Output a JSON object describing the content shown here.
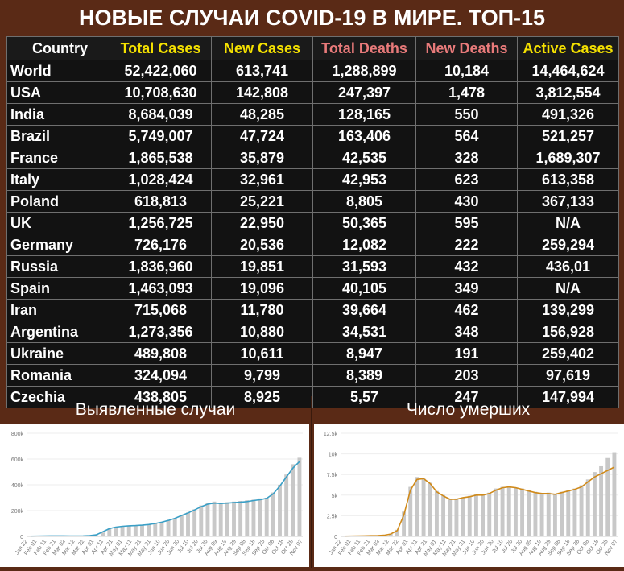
{
  "title": "НОВЫЕ СЛУЧАИ COVID-19 В МИРЕ. ТОП-15",
  "table": {
    "headers": [
      "Country",
      "Total Cases",
      "New Cases",
      "Total Deaths",
      "New Deaths",
      "Active Cases"
    ],
    "header_colors": [
      "#ffffff",
      "#f5e100",
      "#f5e100",
      "#e87a7a",
      "#e87a7a",
      "#f5e100"
    ],
    "rows": [
      [
        "World",
        "52,422,060",
        "613,741",
        "1,288,899",
        "10,184",
        "14,464,624"
      ],
      [
        "USA",
        "10,708,630",
        "142,808",
        "247,397",
        "1,478",
        "3,812,554"
      ],
      [
        "India",
        "8,684,039",
        "48,285",
        "128,165",
        "550",
        "491,326"
      ],
      [
        "Brazil",
        "5,749,007",
        "47,724",
        "163,406",
        "564",
        "521,257"
      ],
      [
        "France",
        "1,865,538",
        "35,879",
        "42,535",
        "328",
        "1,689,307"
      ],
      [
        "Italy",
        "1,028,424",
        "32,961",
        "42,953",
        "623",
        "613,358"
      ],
      [
        "Poland",
        "618,813",
        "25,221",
        "8,805",
        "430",
        "367,133"
      ],
      [
        "UK",
        "1,256,725",
        "22,950",
        "50,365",
        "595",
        "N/A"
      ],
      [
        "Germany",
        "726,176",
        "20,536",
        "12,082",
        "222",
        "259,294"
      ],
      [
        "Russia",
        "1,836,960",
        "19,851",
        "31,593",
        "432",
        "436,01"
      ],
      [
        "Spain",
        "1,463,093",
        "19,096",
        "40,105",
        "349",
        "N/A"
      ],
      [
        "Iran",
        "715,068",
        "11,780",
        "39,664",
        "462",
        "139,299"
      ],
      [
        "Argentina",
        "1,273,356",
        "10,880",
        "34,531",
        "348",
        "156,928"
      ],
      [
        "Ukraine",
        "489,808",
        "10,611",
        "8,947",
        "191",
        "259,402"
      ],
      [
        "Romania",
        "324,094",
        "9,799",
        "8,389",
        "203",
        "97,619"
      ],
      [
        "Czechia",
        "438,805",
        "8,925",
        "5,57",
        "247",
        "147,994"
      ]
    ]
  },
  "charts": {
    "cases_title": "Выявленные случаи",
    "deaths_title": "Число умерших"
  },
  "chart_data": [
    {
      "type": "bar",
      "title": "Выявленные случаи",
      "ylim": [
        0,
        800000
      ],
      "y_ticks": [
        "0",
        "200k",
        "400k",
        "600k",
        "800k"
      ],
      "x_ticks": [
        "Jan 22",
        "Feb 01",
        "Feb 11",
        "Feb 21",
        "Mar 02",
        "Mar 12",
        "Mar 22",
        "Apr 01",
        "Apr 11",
        "Apr 21",
        "May 01",
        "May 11",
        "May 21",
        "May 31",
        "Jun 10",
        "Jun 20",
        "Jun 30",
        "Jul 10",
        "Jul 20",
        "Jul 30",
        "Aug 09",
        "Aug 19",
        "Aug 29",
        "Sep 08",
        "Sep 18",
        "Sep 28",
        "Oct 08",
        "Oct 18",
        "Oct 28",
        "Nov 07"
      ],
      "bar_color": "#c8c8c8",
      "line_color": "#3a9fc6",
      "daily_values": [
        1000,
        2000,
        3000,
        4000,
        5000,
        3000,
        2000,
        2000,
        3000,
        5000,
        10000,
        30000,
        60000,
        75000,
        80000,
        82000,
        85000,
        88000,
        92000,
        100000,
        110000,
        125000,
        140000,
        165000,
        185000,
        210000,
        240000,
        260000,
        270000,
        260000,
        265000,
        270000,
        275000,
        280000,
        285000,
        295000,
        300000,
        340000,
        400000,
        480000,
        560000,
        610000
      ],
      "moving_average": [
        1000,
        2000,
        3000,
        3500,
        4000,
        3500,
        3000,
        3000,
        4000,
        6000,
        12000,
        35000,
        60000,
        72000,
        78000,
        82000,
        84000,
        87000,
        92000,
        100000,
        110000,
        124000,
        140000,
        162000,
        182000,
        205000,
        230000,
        250000,
        258000,
        255000,
        258000,
        262000,
        265000,
        270000,
        278000,
        285000,
        295000,
        330000,
        390000,
        460000,
        530000,
        580000
      ]
    },
    {
      "type": "bar",
      "title": "Число умерших",
      "ylim": [
        0,
        12500
      ],
      "y_ticks": [
        "0",
        "2.5k",
        "5k",
        "7.5k",
        "10k",
        "12.5k"
      ],
      "x_ticks": [
        "Jan 22",
        "Feb 01",
        "Feb 11",
        "Feb 21",
        "Mar 02",
        "Mar 12",
        "Mar 22",
        "Apr 01",
        "Apr 11",
        "Apr 21",
        "May 01",
        "May 11",
        "May 21",
        "May 31",
        "Jun 10",
        "Jun 20",
        "Jun 30",
        "Jul 10",
        "Jul 20",
        "Jul 30",
        "Aug 09",
        "Aug 19",
        "Aug 29",
        "Sep 08",
        "Sep 18",
        "Sep 28",
        "Oct 08",
        "Oct 18",
        "Oct 28",
        "Nov 07"
      ],
      "bar_color": "#c8c8c8",
      "line_color": "#d08a1a",
      "daily_values": [
        20,
        30,
        40,
        60,
        80,
        100,
        150,
        300,
        800,
        3000,
        6000,
        7200,
        7000,
        6500,
        5500,
        5000,
        4500,
        4600,
        4700,
        4900,
        5100,
        5000,
        5300,
        5800,
        6000,
        6100,
        5900,
        5800,
        5600,
        5400,
        5200,
        5300,
        5100,
        5400,
        5600,
        5800,
        6200,
        6900,
        7800,
        8500,
        9500,
        10200
      ],
      "moving_average": [
        20,
        30,
        40,
        60,
        80,
        100,
        140,
        280,
        700,
        2600,
        5600,
        6900,
        7000,
        6400,
        5400,
        4900,
        4500,
        4500,
        4700,
        4800,
        5000,
        5000,
        5200,
        5600,
        5900,
        6000,
        5900,
        5700,
        5500,
        5300,
        5200,
        5200,
        5100,
        5300,
        5500,
        5700,
        6000,
        6600,
        7200,
        7600,
        8000,
        8400
      ]
    }
  ]
}
